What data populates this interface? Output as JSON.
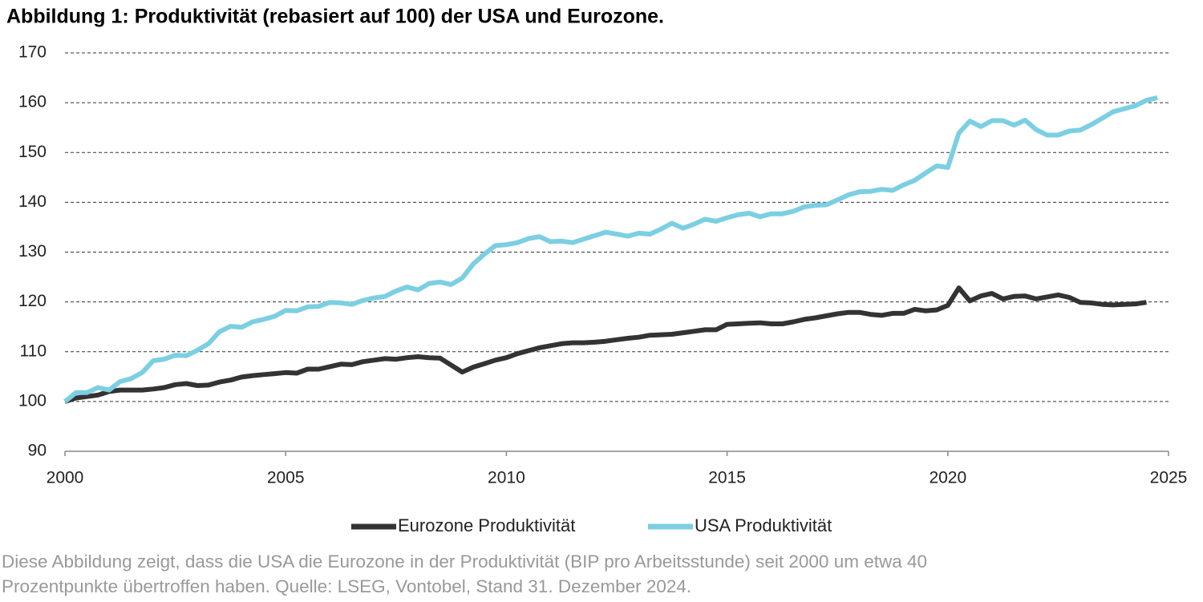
{
  "chart_data": {
    "type": "line",
    "title": "Abbildung 1: Produktivität (rebasiert auf 100) der USA und Eurozone.",
    "caption": [
      "Diese Abbildung zeigt, dass die USA die Eurozone in der Produktivität (BIP pro Arbeitsstunde) seit 2000 um etwa 40",
      "Prozentpunkte übertroffen haben. Quelle: LSEG, Vontobel, Stand 31. Dezember 2024."
    ],
    "x": [
      2000,
      2000.25,
      2000.5,
      2000.75,
      2001,
      2001.25,
      2001.5,
      2001.75,
      2002,
      2002.25,
      2002.5,
      2002.75,
      2003,
      2003.25,
      2003.5,
      2003.75,
      2004,
      2004.25,
      2004.5,
      2004.75,
      2005,
      2005.25,
      2005.5,
      2005.75,
      2006,
      2006.25,
      2006.5,
      2006.75,
      2007,
      2007.25,
      2007.5,
      2007.75,
      2008,
      2008.25,
      2008.5,
      2008.75,
      2009,
      2009.25,
      2009.5,
      2009.75,
      2010,
      2010.25,
      2010.5,
      2010.75,
      2011,
      2011.25,
      2011.5,
      2011.75,
      2012,
      2012.25,
      2012.5,
      2012.75,
      2013,
      2013.25,
      2013.5,
      2013.75,
      2014,
      2014.25,
      2014.5,
      2014.75,
      2015,
      2015.25,
      2015.5,
      2015.75,
      2016,
      2016.25,
      2016.5,
      2016.75,
      2017,
      2017.25,
      2017.5,
      2017.75,
      2018,
      2018.25,
      2018.5,
      2018.75,
      2019,
      2019.25,
      2019.5,
      2019.75,
      2020,
      2020.25,
      2020.5,
      2020.75,
      2021,
      2021.25,
      2021.5,
      2021.75,
      2022,
      2022.25,
      2022.5,
      2022.75,
      2023,
      2023.25,
      2023.5,
      2023.75,
      2024,
      2024.25,
      2024.5,
      2024.75
    ],
    "series": [
      {
        "name": "Eurozone Produktivität",
        "color": "#333333",
        "values": [
          100,
          100.7,
          101,
          101.3,
          102,
          102.3,
          102.3,
          102.3,
          102.5,
          102.8,
          103.4,
          103.6,
          103.2,
          103.3,
          103.9,
          104.3,
          104.9,
          105.2,
          105.4,
          105.6,
          105.8,
          105.7,
          106.5,
          106.5,
          107,
          107.5,
          107.4,
          108,
          108.3,
          108.6,
          108.5,
          108.8,
          109,
          108.8,
          108.7,
          107.3,
          105.9,
          106.9,
          107.6,
          108.3,
          108.8,
          109.6,
          110.2,
          110.8,
          111.2,
          111.6,
          111.8,
          111.8,
          111.9,
          112.1,
          112.4,
          112.7,
          112.9,
          113.3,
          113.4,
          113.5,
          113.8,
          114.1,
          114.4,
          114.4,
          115.5,
          115.6,
          115.7,
          115.8,
          115.6,
          115.6,
          116,
          116.5,
          116.8,
          117.2,
          117.6,
          117.9,
          117.9,
          117.5,
          117.3,
          117.7,
          117.7,
          118.5,
          118.2,
          118.4,
          119.3,
          122.8,
          120.2,
          121.2,
          121.7,
          120.6,
          121.1,
          121.2,
          120.6,
          121,
          121.4,
          120.9,
          119.9,
          119.8,
          119.5,
          119.4,
          119.5,
          119.6,
          119.9,
          null
        ]
      },
      {
        "name": "USA Produktivität",
        "color": "#7ccfe2",
        "values": [
          100,
          101.8,
          101.8,
          102.8,
          102.3,
          104,
          104.6,
          105.8,
          108.2,
          108.5,
          109.3,
          109.2,
          110.3,
          111.6,
          114,
          115.1,
          114.9,
          116,
          116.5,
          117.1,
          118.3,
          118.2,
          119,
          119.1,
          119.9,
          119.8,
          119.5,
          120.3,
          120.8,
          121.1,
          122.2,
          123,
          122.4,
          123.7,
          124,
          123.5,
          124.8,
          127.6,
          129.6,
          131.3,
          131.5,
          131.9,
          132.7,
          133.1,
          132.1,
          132.2,
          131.9,
          132.6,
          133.3,
          134,
          133.6,
          133.2,
          133.8,
          133.6,
          134.6,
          135.8,
          134.8,
          135.6,
          136.6,
          136.2,
          136.9,
          137.5,
          137.8,
          137.1,
          137.7,
          137.7,
          138.2,
          139.1,
          139.4,
          139.5,
          140.5,
          141.5,
          142.1,
          142.2,
          142.6,
          142.4,
          143.5,
          144.4,
          145.9,
          147.3,
          147,
          153.9,
          156.3,
          155.2,
          156.4,
          156.4,
          155.5,
          156.5,
          154.6,
          153.5,
          153.5,
          154.3,
          154.5,
          155.6,
          156.9,
          158.2,
          158.8,
          159.4,
          160.5,
          161
        ]
      }
    ],
    "xlim": [
      2000,
      2025
    ],
    "xticks": [
      2000,
      2005,
      2010,
      2015,
      2020,
      2025
    ],
    "ylim": [
      90,
      170
    ],
    "yticks": [
      90,
      100,
      110,
      120,
      130,
      140,
      150,
      160,
      170
    ],
    "grid": true,
    "legend": "bottom"
  }
}
